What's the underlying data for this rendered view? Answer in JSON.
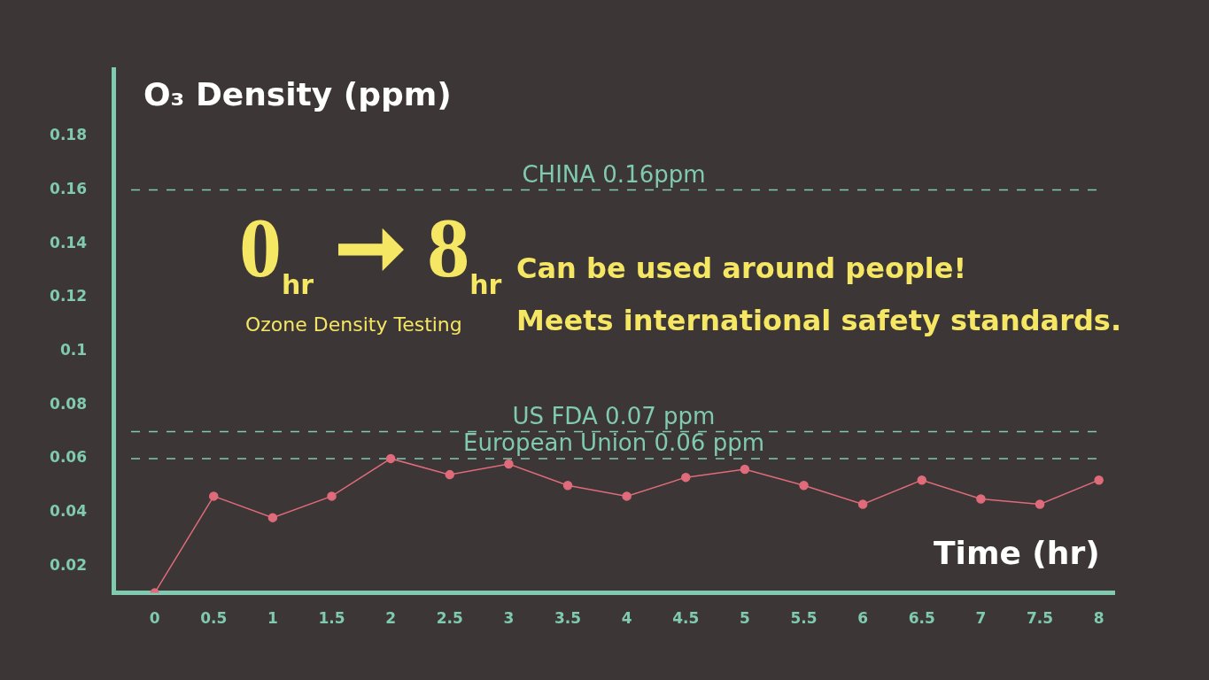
{
  "chart_data": {
    "type": "line",
    "ylabel": "O₃ Density (ppm)",
    "xlabel": "Time (hr)",
    "x": [
      0,
      0.5,
      1,
      1.5,
      2,
      2.5,
      3,
      3.5,
      4,
      4.5,
      5,
      5.5,
      6,
      6.5,
      7,
      7.5,
      8
    ],
    "series": [
      {
        "color": "#e06b7a",
        "values": [
          0.01,
          0.046,
          0.038,
          0.046,
          0.06,
          0.054,
          0.058,
          0.05,
          0.046,
          0.053,
          0.056,
          0.05,
          0.043,
          0.052,
          0.045,
          0.043,
          0.052
        ]
      }
    ],
    "xlim": [
      -0.35,
      8.13
    ],
    "xticks": [
      0,
      0.5,
      1,
      1.5,
      2,
      2.5,
      3,
      3.5,
      4,
      4.5,
      5,
      5.5,
      6,
      6.5,
      7,
      7.5,
      8
    ],
    "ylim": [
      0.01,
      0.205
    ],
    "yticks": [
      0.02,
      0.04,
      0.06,
      0.08,
      0.1,
      0.12,
      0.14,
      0.16,
      0.18
    ],
    "ref_lines": [
      {
        "axis": "y",
        "value": 0.16,
        "label": "CHINA 0.16ppm",
        "color": "#7fcab1",
        "line_style": "dashed"
      },
      {
        "axis": "y",
        "value": 0.07,
        "label": "US FDA 0.07 ppm",
        "color": "#7fcab1",
        "line_style": "dashed"
      },
      {
        "axis": "y",
        "value": 0.06,
        "label": "European Union 0.06 ppm",
        "color": "#7fcab1",
        "line_style": "dashed"
      }
    ],
    "annotations": [
      "0$_{hr}$ ➞ 8$_{hr}$",
      "Ozone Density Testing",
      "Can be used around people!",
      "Meets international safety standards."
    ],
    "grid": false,
    "legend": false,
    "marker": "circle",
    "line_style": "solid"
  }
}
